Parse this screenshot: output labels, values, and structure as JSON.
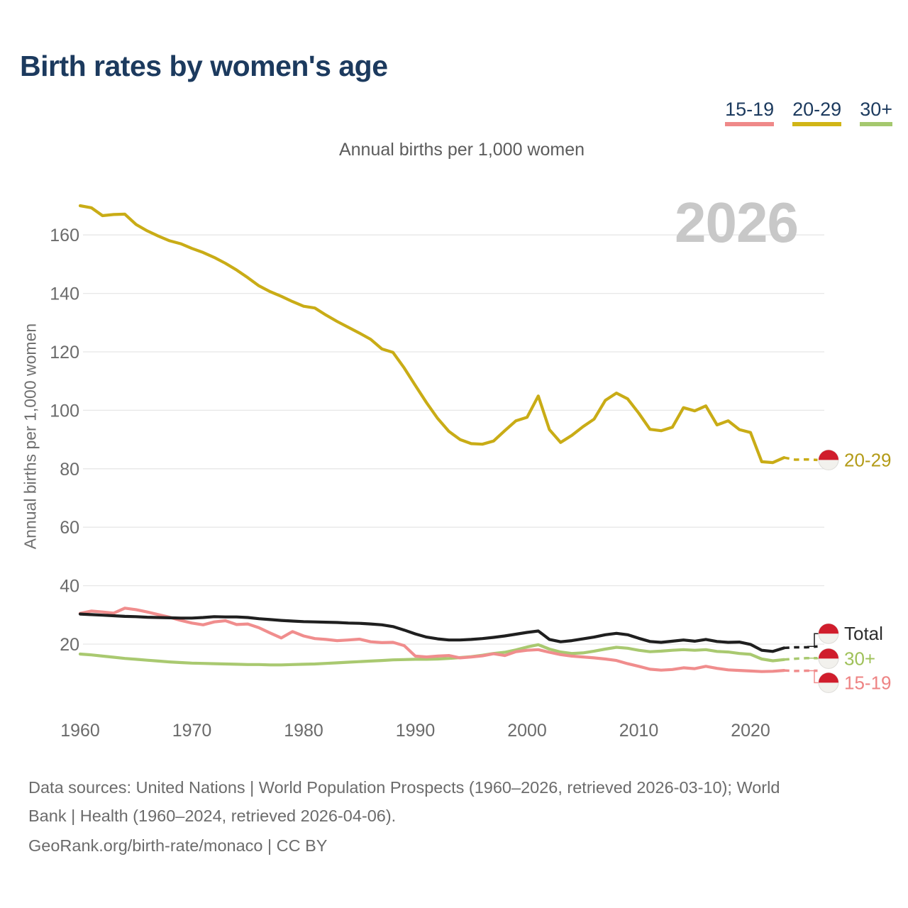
{
  "title": "Birth rates by women's age",
  "subtitle": "Annual births per 1,000 women",
  "watermark": "2026",
  "colors": {
    "heading": "#1c3a5e",
    "text_gray": "#6b6b6b",
    "watermark": "#c8c8c8",
    "grid": "#e7e7e7",
    "tick_text": "#6b6b6b"
  },
  "legend": [
    {
      "label": "15-19",
      "color": "#ef8989"
    },
    {
      "label": "20-29",
      "color": "#d1b516"
    },
    {
      "label": "30+",
      "color": "#a5c86e"
    }
  ],
  "footer": {
    "line1": "Data sources: United Nations | World Population Prospects (1960–2026, retrieved 2026-03-10); World",
    "line2": "Bank | Health (1960–2024, retrieved 2026-04-06).",
    "line3": "GeoRank.org/birth-rate/monaco | CC BY"
  },
  "chart_data": {
    "type": "line",
    "title": "Birth rates by women's age",
    "subtitle": "Annual births per 1,000 women",
    "xlabel": "",
    "ylabel": "Annual births per 1,000 women",
    "x_start": 1960,
    "x_end": 2026,
    "solid_until": 2023,
    "xticks": [
      1960,
      1970,
      1980,
      1990,
      2000,
      2010,
      2020
    ],
    "yticks": [
      20,
      40,
      60,
      80,
      100,
      120,
      140,
      160
    ],
    "ylim": [
      0,
      175
    ],
    "grid": "horizontal-only",
    "legend_position": "top-right",
    "flag": {
      "red": "#d01d2c",
      "white": "#f2f1ed",
      "border": "#dddcd8"
    },
    "series": [
      {
        "name": "20-29",
        "color": "#c9ac16",
        "values": [
          170,
          169.3,
          166.6,
          167,
          167.1,
          163.6,
          161.4,
          159.6,
          158,
          157,
          155.4,
          154,
          152.3,
          150.3,
          148,
          145.4,
          142.6,
          140.6,
          139,
          137.2,
          135.6,
          135,
          132.6,
          130.4,
          128.4,
          126.4,
          124.3,
          121,
          119.8,
          114.5,
          108.5,
          102.6,
          97.2,
          92.8,
          90,
          88.6,
          88.4,
          89.5,
          93,
          96.4,
          97.6,
          104.9,
          93.4,
          89,
          91.4,
          94.4,
          97,
          103.4,
          105.9,
          103.9,
          99,
          93.5,
          93,
          94.2,
          100.9,
          99.8,
          101.5,
          95,
          96.4,
          93.4,
          92.4,
          82.4,
          82.1,
          83.8,
          83.1,
          83.2,
          83
        ]
      },
      {
        "name": "30+",
        "color": "#a9c970",
        "values": [
          16.6,
          16.3,
          15.9,
          15.5,
          15.1,
          14.8,
          14.5,
          14.2,
          13.9,
          13.7,
          13.5,
          13.4,
          13.3,
          13.2,
          13.1,
          13,
          13,
          12.9,
          12.9,
          13,
          13.1,
          13.2,
          13.4,
          13.6,
          13.8,
          14,
          14.2,
          14.4,
          14.6,
          14.7,
          14.8,
          14.8,
          14.9,
          15.1,
          15.4,
          15.7,
          16.2,
          16.8,
          17.2,
          18,
          19,
          19.8,
          18.3,
          17.3,
          16.8,
          17,
          17.6,
          18.3,
          18.9,
          18.6,
          17.9,
          17.4,
          17.6,
          17.9,
          18.1,
          17.9,
          18.1,
          17.5,
          17.3,
          16.8,
          16.5,
          14.9,
          14.3,
          14.7,
          15,
          15.2,
          15.2
        ]
      },
      {
        "name": "15-19",
        "color": "#f08d8d",
        "values": [
          30.5,
          31.3,
          31,
          30.6,
          32.3,
          31.8,
          31,
          30.1,
          29.2,
          28.1,
          27.2,
          26.6,
          27.6,
          28,
          26.7,
          26.9,
          25.6,
          23.8,
          22.1,
          24.3,
          22.8,
          21.9,
          21.6,
          21.2,
          21.4,
          21.7,
          20.8,
          20.5,
          20.6,
          19.5,
          15.9,
          15.6,
          15.9,
          16.1,
          15.3,
          15.6,
          16,
          16.7,
          16.1,
          17.4,
          17.9,
          18.1,
          17.2,
          16.4,
          15.9,
          15.6,
          15.3,
          14.9,
          14.4,
          13.3,
          12.4,
          11.4,
          11.1,
          11.3,
          11.9,
          11.6,
          12.4,
          11.7,
          11.2,
          11,
          10.8,
          10.6,
          10.7,
          11,
          10.8,
          10.9,
          10.9
        ]
      },
      {
        "name": "Total",
        "color": "#1f1f1f",
        "values": [
          30.3,
          30.1,
          29.9,
          29.7,
          29.5,
          29.4,
          29.2,
          29.1,
          29,
          28.9,
          28.9,
          29.1,
          29.4,
          29.3,
          29.3,
          29.1,
          28.7,
          28.4,
          28.1,
          27.9,
          27.7,
          27.6,
          27.5,
          27.4,
          27.2,
          27.1,
          26.9,
          26.6,
          26,
          24.8,
          23.5,
          22.4,
          21.8,
          21.4,
          21.4,
          21.6,
          21.9,
          22.3,
          22.8,
          23.4,
          24,
          24.5,
          21.6,
          20.8,
          21.2,
          21.8,
          22.4,
          23.2,
          23.7,
          23.2,
          22,
          20.9,
          20.6,
          21,
          21.4,
          21,
          21.6,
          20.9,
          20.6,
          20.7,
          19.9,
          17.9,
          17.5,
          18.7,
          18.9,
          18.9,
          19.2
        ]
      }
    ],
    "end_labels": [
      {
        "label": "20-29",
        "color": "#c9ac16",
        "text_color": "#b39b17",
        "line_value": 83,
        "label_value": 83,
        "connector": "none"
      },
      {
        "label": "Total",
        "color": "#1f1f1f",
        "text_color": "#2d2d2d",
        "line_value": 19.2,
        "label_value": 23.6,
        "connector": "elbow"
      },
      {
        "label": "30+",
        "color": "#a9c970",
        "text_color": "#9fc159",
        "line_value": 15.2,
        "label_value": 15.05,
        "connector": "elbow"
      },
      {
        "label": "15-19",
        "color": "#f08d8d",
        "text_color": "#ee8383",
        "line_value": 10.9,
        "label_value": 6.8,
        "connector": "elbow"
      }
    ]
  }
}
